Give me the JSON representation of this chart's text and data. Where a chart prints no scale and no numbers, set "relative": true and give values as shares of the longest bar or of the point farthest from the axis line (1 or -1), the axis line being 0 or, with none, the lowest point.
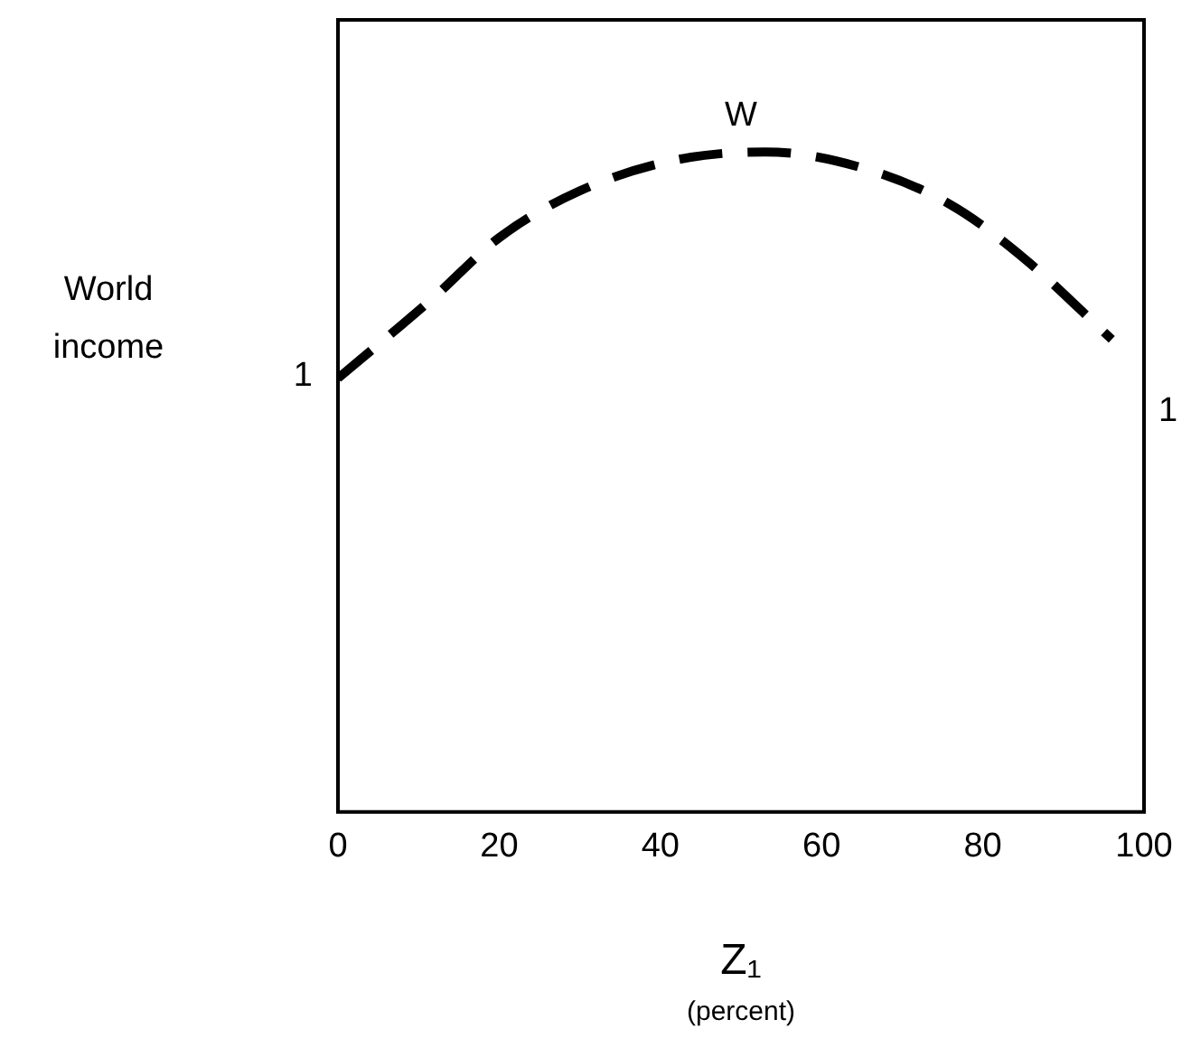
{
  "chart_data": {
    "type": "line",
    "relative": true,
    "xlabel": "Z₁",
    "ylabel": "World income",
    "x": [
      0,
      12,
      20,
      30,
      42,
      53,
      65,
      76,
      85,
      96
    ],
    "values": [
      0.657,
      0.781,
      0.87,
      0.941,
      0.988,
      1,
      0.976,
      0.92,
      0.84,
      0.716
    ],
    "color": "#000000",
    "line_style": "dashed",
    "marker": "none",
    "grid": false,
    "legend": false,
    "xlim": [
      0,
      100
    ],
    "xticks": [
      0,
      20,
      40,
      60,
      80,
      100
    ],
    "annotations": [
      {
        "text": "W",
        "x": 50,
        "y": 1
      },
      {
        "text": "1",
        "x": 0,
        "y": 0.66
      },
      "1",
      "(percent)"
    ]
  }
}
